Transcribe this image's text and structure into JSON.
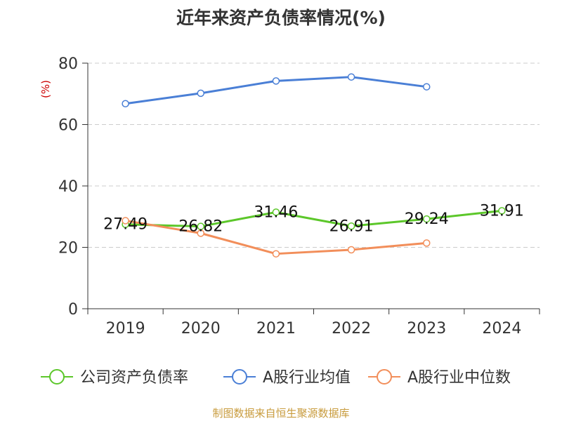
{
  "title": "近年来资产负债率情况(%)",
  "source": "制图数据来自恒生聚源数据库",
  "chart_data": {
    "type": "line",
    "title": "近年来资产负债率情况(%)",
    "ylabel": "(%)",
    "xlabel": "",
    "ylim": [
      0,
      80
    ],
    "yticks": [
      0,
      20,
      40,
      60,
      80
    ],
    "grid": true,
    "legend_position": "bottom",
    "categories": [
      "2019",
      "2020",
      "2021",
      "2022",
      "2023",
      "2024"
    ],
    "series": [
      {
        "name": "公司资产负债率",
        "color": "#5cc72a",
        "values": [
          27.49,
          26.82,
          31.46,
          26.91,
          29.24,
          31.91
        ],
        "labels": [
          "27.49",
          "26.82",
          "31.46",
          "26.91",
          "29.24",
          "31.91"
        ]
      },
      {
        "name": "A股行业均值",
        "color": "#4a7fd6",
        "values": [
          66.8,
          70.2,
          74.2,
          75.5,
          72.3,
          null
        ]
      },
      {
        "name": "A股行业中位数",
        "color": "#f28e5a",
        "values": [
          28.7,
          24.6,
          17.9,
          19.2,
          21.4,
          null
        ]
      }
    ]
  }
}
